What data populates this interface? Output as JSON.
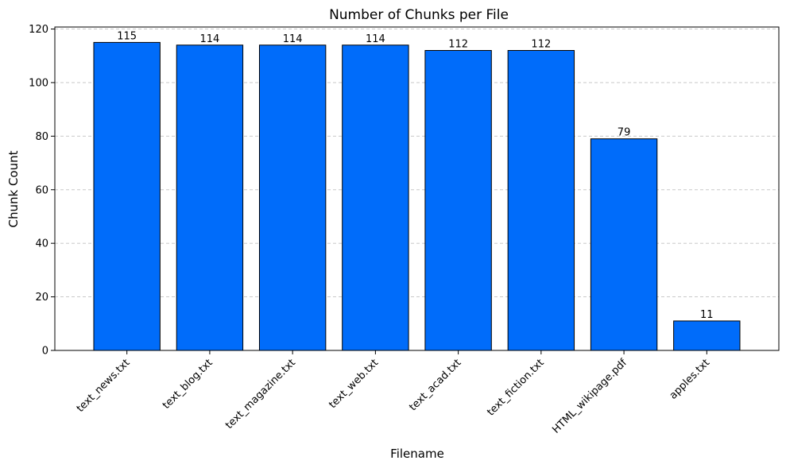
{
  "chart_data": {
    "type": "bar",
    "title": "Number of Chunks per File",
    "xlabel": "Filename",
    "ylabel": "Chunk Count",
    "categories": [
      "text_news.txt",
      "text_blog.txt",
      "text_magazine.txt",
      "text_web.txt",
      "text_acad.txt",
      "text_fiction.txt",
      "HTML_wikipage.pdf",
      "apples.txt"
    ],
    "values": [
      115,
      114,
      114,
      114,
      112,
      112,
      79,
      11
    ],
    "data_labels": [
      "115",
      "114",
      "114",
      "114",
      "112",
      "112",
      "79",
      "11"
    ],
    "ylim": [
      0,
      120.75
    ],
    "yticks": [
      0,
      20,
      40,
      60,
      80,
      100,
      120
    ],
    "ytick_labels": [
      "0",
      "20",
      "40",
      "60",
      "80",
      "100",
      "120"
    ],
    "grid": "y-axis dashed",
    "legend": "none",
    "colors": {
      "bar_fill": "#006cfa",
      "bar_edge": "#000000",
      "grid": "#c0c0c0"
    }
  }
}
